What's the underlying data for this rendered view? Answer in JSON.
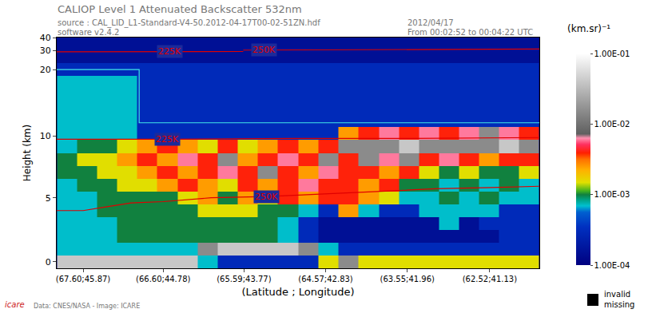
{
  "chart_data": {
    "type": "heatmap",
    "title": "CALIOP Level 1 Attenuated Backscatter 532nm",
    "subtitle": [
      "source : CAL_LID_L1-Standard-V4-50.2012-04-17T00-02-51ZN.hdf",
      "software v2.4.2"
    ],
    "date": "2012/04/17",
    "time_span": "From 00:02:52 to 00:04:22 UTC",
    "x_label": "(Latitude ; Longitude)",
    "y_label": "Height (km)",
    "x": [
      67.8,
      67.55,
      67.3,
      67.05,
      66.8,
      66.55,
      66.29,
      66.04,
      65.79,
      65.54,
      65.29,
      65.04,
      64.79,
      64.54,
      64.29,
      64.03,
      63.78,
      63.53,
      63.28,
      63.03,
      62.78,
      62.53,
      62.28,
      62.03
    ],
    "y_edges": [
      -0.5,
      0.5,
      1.5,
      2.5,
      3.5,
      4.5,
      5.5,
      6.5,
      7.5,
      8.5,
      9.5,
      11,
      13,
      15,
      17,
      19,
      21,
      30,
      40
    ],
    "cells": [
      [
        0.04,
        0.04,
        0.04,
        0.04,
        0.04,
        0.04,
        0.04,
        0.0007,
        0.0003,
        0.0003,
        0.0003,
        0.0003,
        0.0003,
        0.0015,
        0.015,
        0.0015,
        0.0015,
        0.0015,
        0.0015,
        0.0015,
        0.0015,
        0.0015,
        0.0015,
        0.0015
      ],
      [
        0.0007,
        0.0007,
        0.0007,
        0.0007,
        0.0007,
        0.0007,
        0.0007,
        0.015,
        0.04,
        0.04,
        0.04,
        0.04,
        0.015,
        0.0007,
        0.0003,
        0.0003,
        0.0003,
        0.0003,
        0.0003,
        0.0003,
        0.0003,
        0.0003,
        0.0003,
        0.0003
      ],
      [
        0.0007,
        0.0007,
        0.0007,
        0.001,
        0.001,
        0.001,
        0.001,
        0.001,
        0.001,
        0.001,
        0.001,
        0.0007,
        0.0003,
        0.00015,
        0.00015,
        0.00015,
        0.00015,
        0.00015,
        0.00015,
        0.00015,
        0.00015,
        0.00015,
        0.0003,
        0.0003
      ],
      [
        0.0007,
        0.0007,
        0.0007,
        0.001,
        0.001,
        0.001,
        0.001,
        0.001,
        0.001,
        0.001,
        0.001,
        0.0007,
        0.0003,
        0.00015,
        0.00015,
        0.00015,
        0.00015,
        0.00015,
        0.00015,
        0.0007,
        0.00015,
        0.0003,
        0.0003,
        0.0003
      ],
      [
        0.0007,
        0.0007,
        0.001,
        0.001,
        0.001,
        0.001,
        0.001,
        0.0015,
        0.0015,
        0.0015,
        0.001,
        0.001,
        0.0007,
        0.0003,
        0.0025,
        0.0007,
        0.0003,
        0.0003,
        0.0007,
        0.0007,
        0.0007,
        0.0007,
        0.0003,
        0.0003
      ],
      [
        0.0007,
        0.0007,
        0.001,
        0.001,
        0.001,
        0.001,
        0.0015,
        0.0025,
        0.001,
        0.0025,
        0.0015,
        0.004,
        0.0025,
        0.004,
        0.004,
        0.0025,
        0.0015,
        0.0007,
        0.0007,
        0.001,
        0.0007,
        0.001,
        0.0007,
        0.0007
      ],
      [
        0.0007,
        0.001,
        0.001,
        0.0015,
        0.0015,
        0.0025,
        0.004,
        0.0025,
        0.0015,
        0.004,
        0.0025,
        0.004,
        0.006,
        0.004,
        0.004,
        0.0025,
        0.004,
        0.001,
        0.001,
        0.0007,
        0.001,
        0.0007,
        0.001,
        0.0007
      ],
      [
        0.001,
        0.001,
        0.0015,
        0.0015,
        0.0025,
        0.004,
        0.0025,
        0.004,
        0.006,
        0.004,
        0.015,
        0.004,
        0.0025,
        0.006,
        0.004,
        0.004,
        0.0025,
        0.004,
        0.0015,
        0.001,
        0.0015,
        0.001,
        0.001,
        0.0015
      ],
      [
        0.001,
        0.0015,
        0.0015,
        0.0025,
        0.004,
        0.0025,
        0.006,
        0.004,
        0.015,
        0.0025,
        0.004,
        0.006,
        0.004,
        0.015,
        0.004,
        0.015,
        0.006,
        0.015,
        0.004,
        0.006,
        0.004,
        0.0025,
        0.004,
        0.004
      ],
      [
        0.0007,
        0.001,
        0.001,
        0.0015,
        0.0025,
        0.004,
        0.0025,
        0.0015,
        0.004,
        0.0015,
        0.0025,
        0.004,
        0.0025,
        0.004,
        0.015,
        0.015,
        0.015,
        0.04,
        0.015,
        0.015,
        0.015,
        0.015,
        0.04,
        0.015
      ],
      [
        0.0007,
        0.0007,
        0.0007,
        0.0007,
        0.0003,
        0.0003,
        0.0003,
        0.0003,
        0.0003,
        0.0003,
        0.0003,
        0.0003,
        0.0003,
        0.0003,
        0.0025,
        0.004,
        0.006,
        0.004,
        0.006,
        0.004,
        0.006,
        0.015,
        0.006,
        0.004
      ],
      [
        0.0007,
        0.0007,
        0.0007,
        0.0007,
        0.0003,
        0.0003,
        0.0003,
        0.0003,
        0.0003,
        0.0003,
        0.0003,
        0.0003,
        0.0003,
        0.0003,
        0.0003,
        0.0003,
        0.0003,
        0.0003,
        0.0003,
        0.0003,
        0.0003,
        0.0003,
        0.0003,
        0.0003
      ],
      [
        0.0007,
        0.0007,
        0.0007,
        0.0007,
        0.0003,
        0.0003,
        0.0003,
        0.0003,
        0.0003,
        0.0003,
        0.0003,
        0.0003,
        0.0003,
        0.0003,
        0.0003,
        0.0003,
        0.0003,
        0.0003,
        0.0003,
        0.0003,
        0.0003,
        0.0003,
        0.0003,
        0.0003
      ],
      [
        0.0007,
        0.0007,
        0.0007,
        0.0007,
        0.0003,
        0.0003,
        0.0003,
        0.0003,
        0.0003,
        0.0003,
        0.0003,
        0.0003,
        0.0003,
        0.0003,
        0.0003,
        0.0003,
        0.0003,
        0.0003,
        0.0003,
        0.0003,
        0.0003,
        0.0003,
        0.0003,
        0.0003
      ],
      [
        0.0007,
        0.0007,
        0.0007,
        0.0007,
        0.0003,
        0.0003,
        0.0003,
        0.0003,
        0.0003,
        0.0003,
        0.0003,
        0.0003,
        0.0003,
        0.0003,
        0.0003,
        0.0003,
        0.0003,
        0.0003,
        0.0003,
        0.0003,
        0.0003,
        0.0003,
        0.0003,
        0.0003
      ],
      [
        0.0003,
        0.0003,
        0.0003,
        0.0003,
        0.0003,
        0.0003,
        0.0003,
        0.0003,
        0.0003,
        0.0003,
        0.0003,
        0.0003,
        0.0003,
        0.0003,
        0.0003,
        0.0003,
        0.0003,
        0.0003,
        0.0003,
        0.0003,
        0.0003,
        0.0003,
        0.0003,
        0.0003
      ],
      [
        0.00015,
        0.00015,
        0.00015,
        0.00015,
        0.00015,
        0.00015,
        0.00015,
        0.00015,
        0.00015,
        0.00015,
        0.00015,
        0.00015,
        0.00015,
        0.00015,
        0.00015,
        0.00015,
        0.00015,
        0.00015,
        0.00015,
        0.00015,
        0.00015,
        0.00015,
        0.00015,
        0.00015
      ],
      [
        0.00015,
        0.00015,
        0.00015,
        0.00015,
        0.00015,
        0.00015,
        0.00015,
        0.00015,
        0.00015,
        0.00015,
        0.00015,
        0.00015,
        0.00015,
        0.00015,
        0.00015,
        0.00015,
        0.00015,
        0.00015,
        0.00015,
        0.00015,
        0.00015,
        0.00015,
        0.00015,
        0.00015
      ]
    ],
    "xlim": [
      67.93,
      61.9
    ],
    "xticks": [
      {
        "value": 67.6,
        "label": "(67.60;45.87)"
      },
      {
        "value": 66.6,
        "label": "(66.60;44.78)"
      },
      {
        "value": 65.59,
        "label": "(65.59;43.77)"
      },
      {
        "value": 64.57,
        "label": "(64.57;42.83)"
      },
      {
        "value": 63.55,
        "label": "(63.55;41.96)"
      },
      {
        "value": 62.52,
        "label": "(62.52;41.13)"
      }
    ],
    "ylim": [
      -0.5,
      40
    ],
    "yticks": [
      0,
      5,
      10,
      20,
      30,
      40
    ],
    "colorbar": {
      "title": "(km.sr)⁻¹",
      "range": [
        0.0001,
        0.1
      ],
      "ticks": [
        {
          "value": 0.1,
          "label": "1.00E-01"
        },
        {
          "value": 0.01,
          "label": "1.00E-02"
        },
        {
          "value": 0.001,
          "label": "1.00E-03"
        },
        {
          "value": 0.0001,
          "label": "1.00E-04"
        }
      ]
    },
    "contours": [
      {
        "name": "225K",
        "color": "#e00000",
        "segments": [
          {
            "x": [
              67.93,
              66.5,
              65.0,
              63.5,
              61.9
            ],
            "y": [
              9.6,
              9.6,
              9.7,
              9.7,
              9.8
            ]
          },
          {
            "x": [
              67.93,
              65.6
            ],
            "y": [
              29,
              29.2
            ]
          }
        ],
        "labels": [
          {
            "x": 66.55,
            "y": 9.6
          },
          {
            "x": 66.52,
            "y": 29
          }
        ]
      },
      {
        "name": "250K",
        "color": "#e00000",
        "segments": [
          {
            "x": [
              67.93,
              67.6,
              67.3,
              67.0,
              66.6,
              66.0,
              65.3,
              64.6,
              64.0,
              63.2,
              62.5,
              61.9
            ],
            "y": [
              4.0,
              4.0,
              4.3,
              4.6,
              4.7,
              5.0,
              5.1,
              5.3,
              5.5,
              5.7,
              5.8,
              5.9
            ]
          },
          {
            "x": [
              65.6,
              63.0,
              61.9
            ],
            "y": [
              30.2,
              30.5,
              31
            ]
          }
        ],
        "labels": [
          {
            "x": 65.31,
            "y": 5.1
          },
          {
            "x": 65.34,
            "y": 30.6
          }
        ]
      }
    ],
    "region_outline": {
      "color": "#40e8e8",
      "x": [
        67.93,
        66.9,
        66.9,
        61.9
      ],
      "y": [
        20,
        20,
        11.7,
        11.7
      ]
    },
    "missing_legend": [
      "invalid",
      "missing"
    ],
    "credit": "Data: CNES/NASA - Image: ICARE",
    "logo": "icare"
  }
}
